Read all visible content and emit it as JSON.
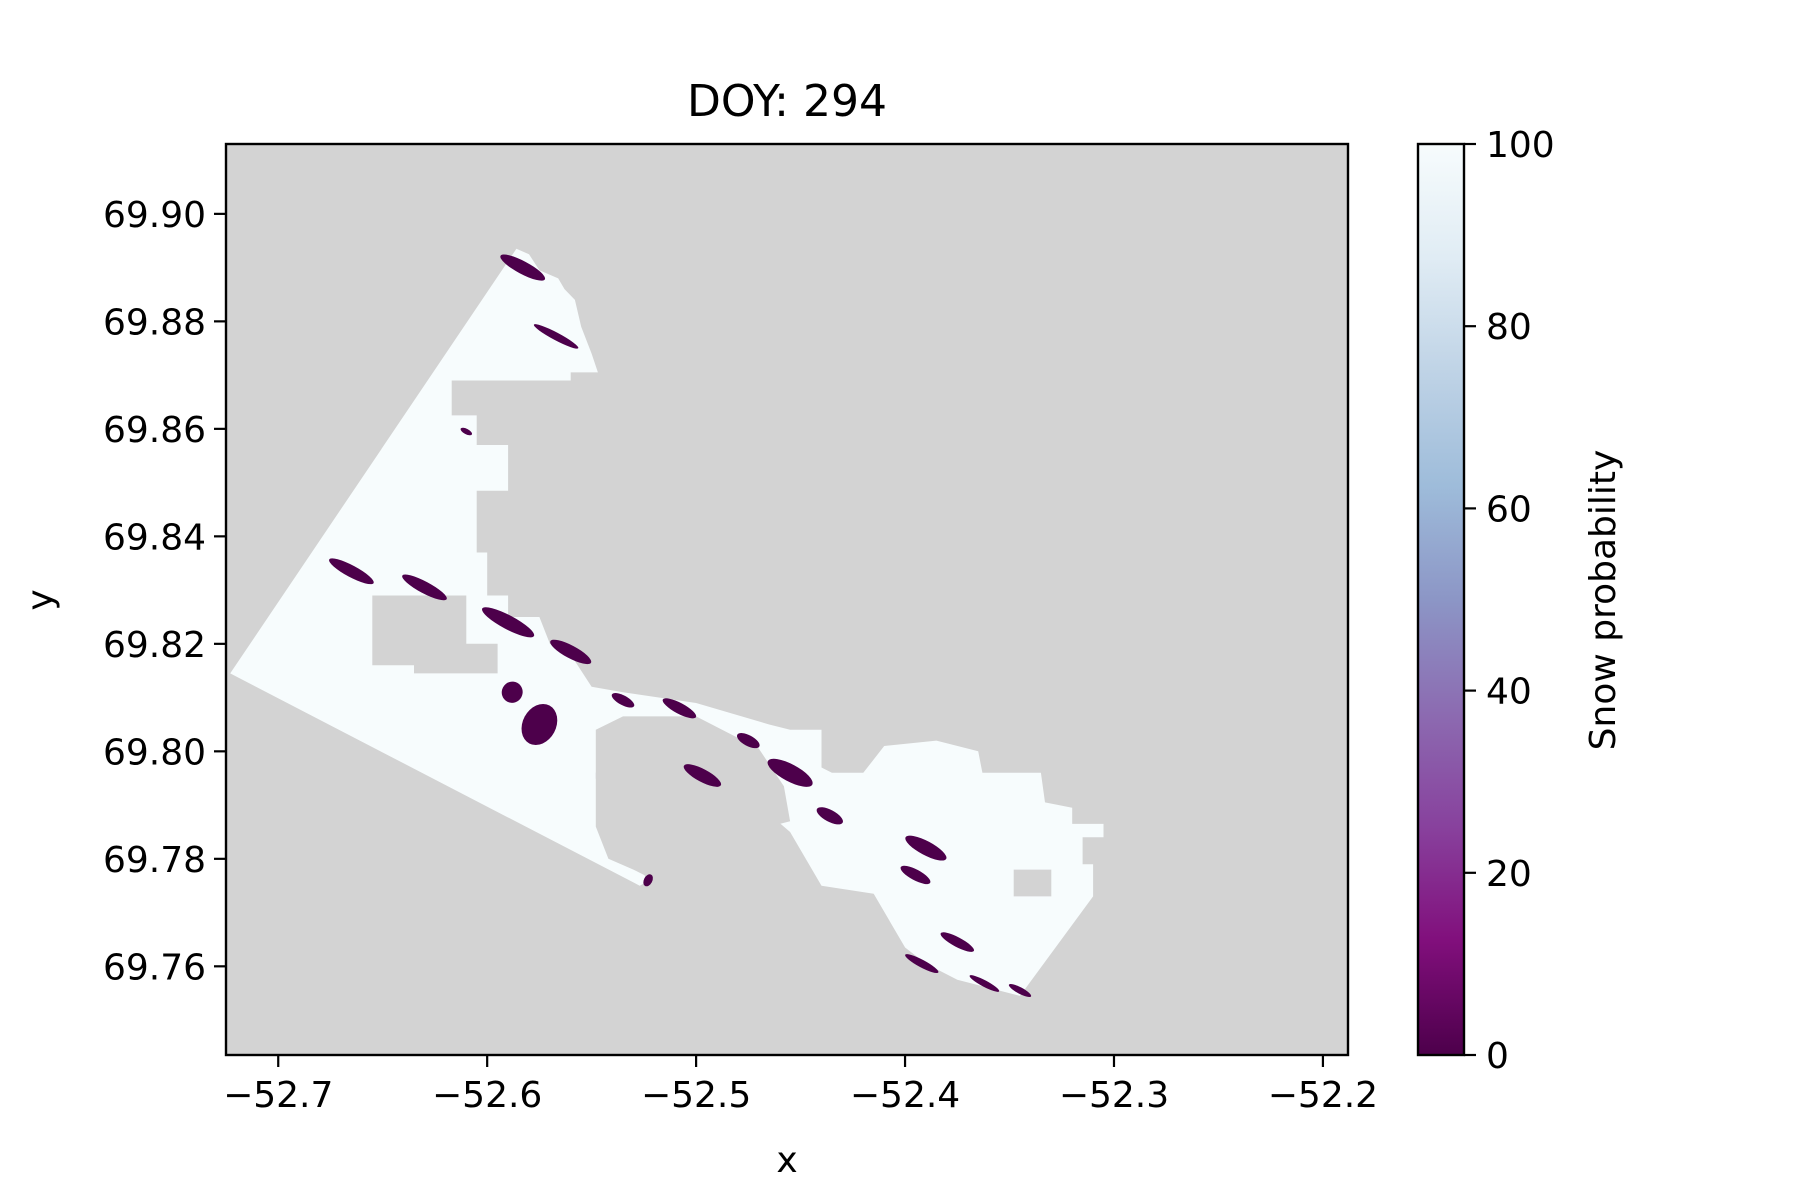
{
  "chart_data": {
    "type": "heatmap",
    "title": "DOY: 294",
    "xlabel": "x",
    "ylabel": "y",
    "xlim": [
      -52.725,
      -52.188
    ],
    "ylim": [
      69.7435,
      69.913
    ],
    "xticks": [
      -52.7,
      -52.6,
      -52.5,
      -52.4,
      -52.3,
      -52.2
    ],
    "xtick_labels": [
      "−52.7",
      "−52.6",
      "−52.5",
      "−52.4",
      "−52.3",
      "−52.2"
    ],
    "yticks": [
      69.76,
      69.78,
      69.8,
      69.82,
      69.84,
      69.86,
      69.88,
      69.9
    ],
    "ytick_labels": [
      "69.76",
      "69.78",
      "69.80",
      "69.82",
      "69.84",
      "69.86",
      "69.88",
      "69.90"
    ],
    "background_color": "#d3d3d3",
    "grid": false,
    "colorbar": {
      "label": "Snow probability",
      "vmin": 0,
      "vmax": 100,
      "ticks": [
        0,
        20,
        40,
        60,
        80,
        100
      ],
      "tick_labels": [
        "0",
        "20",
        "40",
        "60",
        "80",
        "100"
      ],
      "colormap": "BuPu_r",
      "stops": [
        {
          "value": 0,
          "color": "#4d004b"
        },
        {
          "value": 12.5,
          "color": "#810f7c"
        },
        {
          "value": 25,
          "color": "#88419d"
        },
        {
          "value": 37.5,
          "color": "#8c6bb1"
        },
        {
          "value": 50,
          "color": "#8c96c6"
        },
        {
          "value": 62.5,
          "color": "#9ebcda"
        },
        {
          "value": 75,
          "color": "#bfd3e6"
        },
        {
          "value": 87.5,
          "color": "#e0ecf4"
        },
        {
          "value": 100,
          "color": "#f7fcfd"
        }
      ]
    },
    "high_region_value": 100,
    "high_region_outline": [
      [
        -52.723,
        69.8145
      ],
      [
        -52.586,
        69.8935
      ],
      [
        -52.58,
        69.8925
      ],
      [
        -52.575,
        69.8895
      ],
      [
        -52.566,
        69.888
      ],
      [
        -52.563,
        69.886
      ],
      [
        -52.558,
        69.884
      ],
      [
        -52.555,
        69.879
      ],
      [
        -52.55,
        69.874
      ],
      [
        -52.547,
        69.8705
      ],
      [
        -52.56,
        69.8705
      ],
      [
        -52.56,
        69.869
      ],
      [
        -52.617,
        69.869
      ],
      [
        -52.617,
        69.8625
      ],
      [
        -52.605,
        69.8625
      ],
      [
        -52.605,
        69.857
      ],
      [
        -52.59,
        69.857
      ],
      [
        -52.59,
        69.8505
      ],
      [
        -52.59,
        69.8485
      ],
      [
        -52.605,
        69.8485
      ],
      [
        -52.605,
        69.837
      ],
      [
        -52.6,
        69.837
      ],
      [
        -52.6,
        69.829
      ],
      [
        -52.59,
        69.829
      ],
      [
        -52.59,
        69.825
      ],
      [
        -52.575,
        69.825
      ],
      [
        -52.57,
        69.82
      ],
      [
        -52.56,
        69.818
      ],
      [
        -52.555,
        69.815
      ],
      [
        -52.55,
        69.812
      ],
      [
        -52.535,
        69.811
      ],
      [
        -52.5,
        69.809
      ],
      [
        -52.465,
        69.805
      ],
      [
        -52.455,
        69.804
      ],
      [
        -52.44,
        69.804
      ],
      [
        -52.44,
        69.797
      ],
      [
        -52.435,
        69.796
      ],
      [
        -52.42,
        69.796
      ],
      [
        -52.41,
        69.801
      ],
      [
        -52.385,
        69.802
      ],
      [
        -52.365,
        69.8
      ],
      [
        -52.363,
        69.796
      ],
      [
        -52.335,
        69.796
      ],
      [
        -52.333,
        69.7905
      ],
      [
        -52.32,
        69.7895
      ],
      [
        -52.32,
        69.7865
      ],
      [
        -52.305,
        69.7865
      ],
      [
        -52.305,
        69.784
      ],
      [
        -52.315,
        69.784
      ],
      [
        -52.315,
        69.779
      ],
      [
        -52.31,
        69.779
      ],
      [
        -52.31,
        69.773
      ],
      [
        -52.345,
        69.7545
      ],
      [
        -52.355,
        69.7555
      ],
      [
        -52.375,
        69.7575
      ],
      [
        -52.39,
        69.7605
      ],
      [
        -52.4,
        69.7635
      ],
      [
        -52.415,
        69.7735
      ],
      [
        -52.44,
        69.775
      ],
      [
        -52.455,
        69.785
      ],
      [
        -52.47,
        69.79
      ],
      [
        -52.49,
        69.796
      ],
      [
        -52.5,
        69.803
      ],
      [
        -52.525,
        69.806
      ],
      [
        -52.548,
        69.796
      ],
      [
        -52.548,
        69.786
      ],
      [
        -52.542,
        69.78
      ],
      [
        -52.53,
        69.778
      ],
      [
        -52.525,
        69.777
      ],
      [
        -52.522,
        69.776
      ],
      [
        -52.527,
        69.775
      ]
    ],
    "no_data_holes": [
      {
        "x": [
          -52.655,
          -52.655,
          -52.635,
          -52.635,
          -52.595,
          -52.595,
          -52.61,
          -52.61,
          -52.655
        ],
        "y": [
          69.829,
          69.816,
          69.816,
          69.8145,
          69.8145,
          69.82,
          69.82,
          69.829,
          69.829
        ]
      },
      {
        "x": [
          -52.5,
          -52.47,
          -52.458,
          -52.455,
          -52.505,
          -52.54,
          -52.548,
          -52.548,
          -52.535
        ],
        "y": [
          69.8065,
          69.8005,
          69.7935,
          69.787,
          69.782,
          69.782,
          69.795,
          69.804,
          69.8065
        ]
      },
      {
        "x": [
          -52.348,
          -52.348,
          -52.33,
          -52.33,
          -52.348
        ],
        "y": [
          69.778,
          69.773,
          69.773,
          69.778,
          69.778
        ]
      }
    ],
    "low_value_patches": [
      {
        "value": 0,
        "x": -52.583,
        "y": 69.89,
        "rx": 0.012,
        "ry": 0.0012
      },
      {
        "value": 0,
        "x": -52.567,
        "y": 69.8772,
        "rx": 0.012,
        "ry": 0.0007
      },
      {
        "value": 0,
        "x": -52.61,
        "y": 69.8595,
        "rx": 0.003,
        "ry": 0.0005
      },
      {
        "value": 0,
        "x": -52.665,
        "y": 69.8335,
        "rx": 0.012,
        "ry": 0.0011
      },
      {
        "value": 0,
        "x": -52.63,
        "y": 69.8305,
        "rx": 0.012,
        "ry": 0.0011
      },
      {
        "value": 0,
        "x": -52.59,
        "y": 69.824,
        "rx": 0.014,
        "ry": 0.0013
      },
      {
        "value": 0,
        "x": -52.56,
        "y": 69.8185,
        "rx": 0.011,
        "ry": 0.0012
      },
      {
        "value": 0,
        "x": -52.575,
        "y": 69.805,
        "rx": 0.008,
        "ry": 0.004
      },
      {
        "value": 0,
        "x": -52.588,
        "y": 69.811,
        "rx": 0.005,
        "ry": 0.002
      },
      {
        "value": 0,
        "x": -52.535,
        "y": 69.8095,
        "rx": 0.006,
        "ry": 0.0009
      },
      {
        "value": 0,
        "x": -52.508,
        "y": 69.808,
        "rx": 0.009,
        "ry": 0.001
      },
      {
        "value": 0,
        "x": -52.475,
        "y": 69.802,
        "rx": 0.006,
        "ry": 0.001
      },
      {
        "value": 0,
        "x": -52.455,
        "y": 69.796,
        "rx": 0.012,
        "ry": 0.0016
      },
      {
        "value": 0,
        "x": -52.436,
        "y": 69.788,
        "rx": 0.007,
        "ry": 0.0011
      },
      {
        "value": 0,
        "x": -52.39,
        "y": 69.782,
        "rx": 0.011,
        "ry": 0.0013
      },
      {
        "value": 0,
        "x": -52.395,
        "y": 69.777,
        "rx": 0.008,
        "ry": 0.001
      },
      {
        "value": 0,
        "x": -52.375,
        "y": 69.7645,
        "rx": 0.009,
        "ry": 0.0009
      },
      {
        "value": 0,
        "x": -52.392,
        "y": 69.7605,
        "rx": 0.009,
        "ry": 0.0007
      },
      {
        "value": 0,
        "x": -52.362,
        "y": 69.7568,
        "rx": 0.008,
        "ry": 0.0006
      },
      {
        "value": 0,
        "x": -52.345,
        "y": 69.7555,
        "rx": 0.006,
        "ry": 0.0006
      },
      {
        "value": 0,
        "x": -52.497,
        "y": 69.7955,
        "rx": 0.01,
        "ry": 0.0012
      },
      {
        "value": 0,
        "x": -52.523,
        "y": 69.776,
        "rx": 0.002,
        "ry": 0.0012
      }
    ]
  }
}
